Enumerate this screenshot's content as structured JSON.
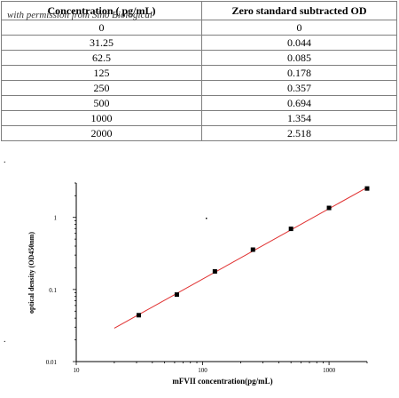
{
  "watermark": "with permission from Sino Biological",
  "table": {
    "headers": [
      "Concentration ( pg/mL)",
      "Zero standard subtracted OD"
    ],
    "rows": [
      [
        "0",
        "0"
      ],
      [
        "31.25",
        "0.044"
      ],
      [
        "62.5",
        "0.085"
      ],
      [
        "125",
        "0.178"
      ],
      [
        "250",
        "0.357"
      ],
      [
        "500",
        "0.694"
      ],
      [
        "1000",
        "1.354"
      ],
      [
        "2000",
        "2.518"
      ]
    ]
  },
  "bullets": [
    ".",
    "."
  ],
  "chart_data": {
    "type": "scatter",
    "xlabel": "mFVII concentration(pg/mL)",
    "ylabel": "optical density (OD450nm)",
    "xscale": "log",
    "yscale": "log",
    "xlim": [
      10,
      2000
    ],
    "ylim": [
      0.01,
      3
    ],
    "xticks": [
      "10",
      "100",
      "1000"
    ],
    "yticks": [
      "0.01",
      "0.1",
      "1"
    ],
    "points": {
      "x": [
        31.25,
        62.5,
        125,
        250,
        500,
        1000,
        2000
      ],
      "y": [
        0.044,
        0.085,
        0.178,
        0.357,
        0.694,
        1.354,
        2.518
      ]
    },
    "fit_line": {
      "x": [
        20,
        2000
      ],
      "y": [
        0.029,
        2.6
      ]
    },
    "colors": {
      "points": "#000000",
      "fit_line": "#e03030",
      "axes": "#000000"
    }
  }
}
